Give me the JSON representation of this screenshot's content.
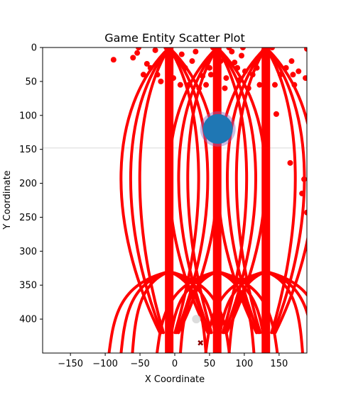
{
  "chart_data": {
    "type": "scatter",
    "title": "Game Entity Scatter Plot",
    "xlabel": "X Coordinate",
    "ylabel": "Y Coordinate",
    "xlim": [
      -190,
      190
    ],
    "ylim": [
      450,
      0
    ],
    "y_axis_inverted": true,
    "grid": false,
    "xticks": [
      -150,
      -100,
      -50,
      0,
      50,
      100,
      150
    ],
    "yticks": [
      0,
      50,
      100,
      150,
      200,
      250,
      300,
      350,
      400
    ],
    "xtick_labels": [
      "−150",
      "−100",
      "−50",
      "0",
      "50",
      "100",
      "150"
    ],
    "ytick_labels": [
      "0",
      "50",
      "100",
      "150",
      "200",
      "250",
      "300",
      "350",
      "400"
    ],
    "colors": {
      "bullet": "#ff0000",
      "player": "#1f77b4",
      "player_ring": "#9467bd",
      "enemy_marker": "#8b0000",
      "ghost": "#d3d3d3"
    },
    "reference_line_y": 148,
    "player": {
      "x": 62,
      "y": 120
    },
    "ghost_marker": {
      "x": 31,
      "y": 400
    },
    "cross_marker": {
      "x": 37,
      "y": 435
    },
    "beams": [
      {
        "x": -8,
        "y_from": 0,
        "y_to": 450
      },
      {
        "x": 61,
        "y_from": 0,
        "y_to": 450
      },
      {
        "x": 131,
        "y_from": 0,
        "y_to": 450
      }
    ],
    "arc_centers": [
      -8,
      61,
      131
    ],
    "bullets": [
      [
        -88,
        18
      ],
      [
        -60,
        15
      ],
      [
        -54,
        8
      ],
      [
        -52,
        0
      ],
      [
        -45,
        40
      ],
      [
        -40,
        24
      ],
      [
        -35,
        30
      ],
      [
        -28,
        4
      ],
      [
        -25,
        40
      ],
      [
        -20,
        50
      ],
      [
        -12,
        0
      ],
      [
        -2,
        45
      ],
      [
        8,
        55
      ],
      [
        10,
        10
      ],
      [
        15,
        30
      ],
      [
        20,
        55
      ],
      [
        25,
        20
      ],
      [
        30,
        6
      ],
      [
        35,
        60
      ],
      [
        40,
        42
      ],
      [
        45,
        55
      ],
      [
        50,
        30
      ],
      [
        52,
        40
      ],
      [
        55,
        0
      ],
      [
        66,
        20
      ],
      [
        72,
        60
      ],
      [
        74,
        45
      ],
      [
        78,
        0
      ],
      [
        82,
        6
      ],
      [
        86,
        22
      ],
      [
        90,
        30
      ],
      [
        93,
        48
      ],
      [
        96,
        12
      ],
      [
        98,
        0
      ],
      [
        101,
        35
      ],
      [
        106,
        60
      ],
      [
        112,
        40
      ],
      [
        118,
        30
      ],
      [
        122,
        55
      ],
      [
        128,
        5
      ],
      [
        140,
        0
      ],
      [
        144,
        55
      ],
      [
        146,
        98
      ],
      [
        152,
        40
      ],
      [
        160,
        30
      ],
      [
        166,
        170
      ],
      [
        168,
        20
      ],
      [
        170,
        40
      ],
      [
        172,
        55
      ],
      [
        178,
        35
      ],
      [
        183,
        215
      ],
      [
        186,
        194
      ],
      [
        188,
        45
      ],
      [
        190,
        243
      ],
      [
        190,
        2
      ]
    ]
  }
}
